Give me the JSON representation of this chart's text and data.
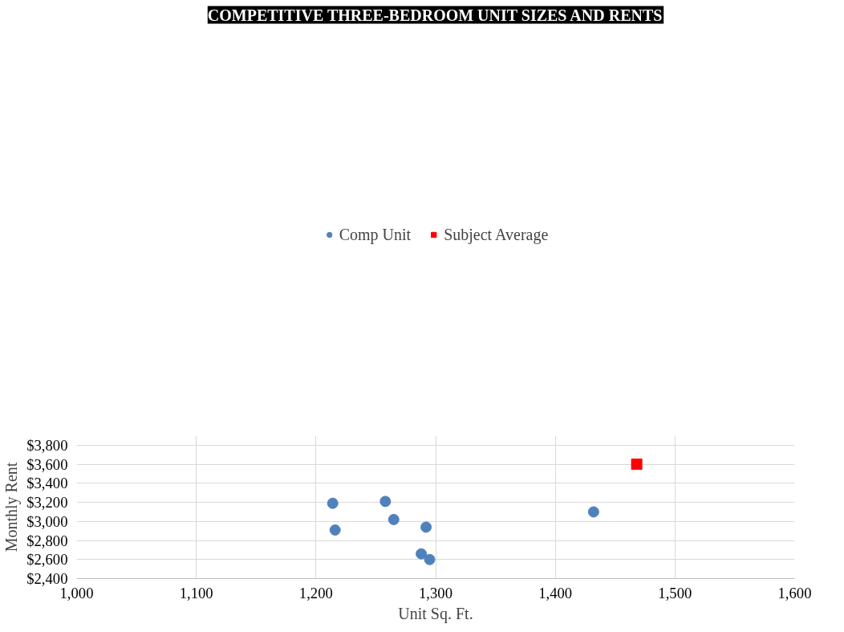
{
  "chart_data": {
    "type": "scatter",
    "title": "COMPETITIVE THREE-BEDROOM UNIT SIZES AND RENTS",
    "xlabel": "Unit Sq. Ft.",
    "ylabel": "Monthly Rent",
    "xlim": [
      1000,
      1600
    ],
    "xticks": [
      {
        "value": 1000,
        "label": "1,000"
      },
      {
        "value": 1100,
        "label": "1,100"
      },
      {
        "value": 1200,
        "label": "1,200"
      },
      {
        "value": 1300,
        "label": "1,300"
      },
      {
        "value": 1400,
        "label": "1,400"
      },
      {
        "value": 1500,
        "label": "1,500"
      },
      {
        "value": 1600,
        "label": "1,600"
      }
    ],
    "ylim": [
      2400,
      3900
    ],
    "yticks": [
      {
        "value": 2400,
        "label": "$2,400"
      },
      {
        "value": 2600,
        "label": "$2,600"
      },
      {
        "value": 2800,
        "label": "$2,800"
      },
      {
        "value": 3000,
        "label": "$3,000"
      },
      {
        "value": 3200,
        "label": "$3,200"
      },
      {
        "value": 3400,
        "label": "$3,400"
      },
      {
        "value": 3600,
        "label": "$3,600"
      },
      {
        "value": 3800,
        "label": "$3,800"
      }
    ],
    "grid": true,
    "legend": "top",
    "series": [
      {
        "name": "Comp Unit",
        "color": "#4f81bd",
        "marker": "circle",
        "x": [
          1214,
          1258,
          1265,
          1292,
          1216,
          1288,
          1295,
          1432
        ],
        "values": [
          3190,
          3210,
          3020,
          2940,
          2910,
          2660,
          2600,
          3100
        ]
      },
      {
        "name": "Subject Average",
        "color": "#ff0000",
        "marker": "square",
        "x": [
          1468
        ],
        "values": [
          3600
        ]
      }
    ]
  }
}
